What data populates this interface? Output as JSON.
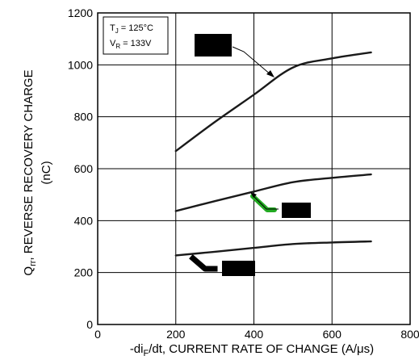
{
  "chart_data": {
    "type": "line",
    "title": "",
    "x": [
      200,
      300,
      400,
      500,
      600,
      700
    ],
    "series": [
      {
        "values": [
          668,
          780,
          885,
          990,
          1025,
          1048
        ]
      },
      {
        "values": [
          437,
          475,
          512,
          548,
          565,
          578
        ]
      },
      {
        "values": [
          266,
          280,
          295,
          310,
          316,
          320
        ]
      }
    ],
    "xlim": [
      0,
      800
    ],
    "ylim": [
      0,
      1200
    ],
    "xticks": [
      "0",
      "200",
      "400",
      "600",
      "800"
    ],
    "yticks": [
      "0",
      "200",
      "400",
      "600",
      "800",
      "1000",
      "1200"
    ],
    "grid": true,
    "xlabel": {
      "pre": "-di",
      "sub": "F",
      "post": "/dt, CURRENT RATE OF CHANGE (A/μs)"
    },
    "ylabel": {
      "pre": "Q",
      "sub": "rr",
      "line1_post": ", REVERSE RECOVERY CHARGE",
      "line2": "(nC)"
    },
    "conditions": {
      "tj_pre": "T",
      "tj_sub": "J",
      "tj_post": " = 125°C",
      "vr_pre": "V",
      "vr_sub": "R",
      "vr_post": " = 133V"
    },
    "colors": {
      "curve": "#1a1a1a",
      "grid": "#000000",
      "redaction": "#000000",
      "leader_green": "#22aa22"
    }
  }
}
